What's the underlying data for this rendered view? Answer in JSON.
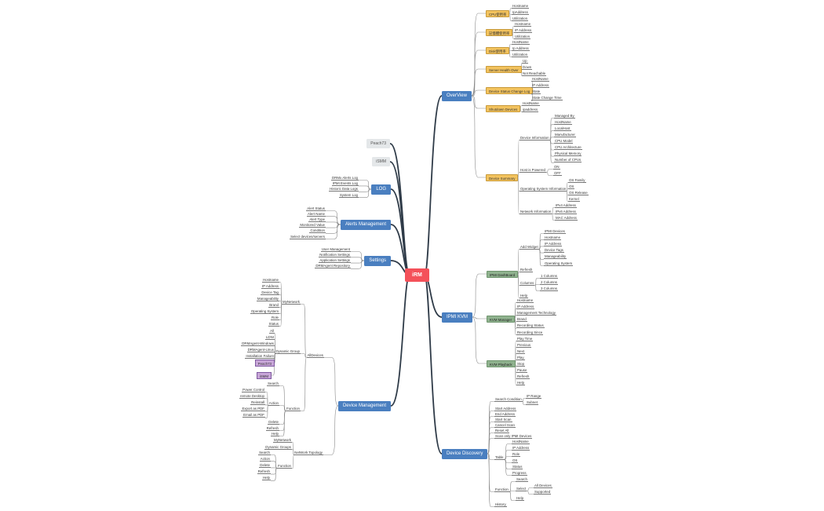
{
  "colors": {
    "root": "#f4515a",
    "main": "#4a7fc0",
    "overview_topics": "#f3c35e",
    "kvm_topics": "#8fb28e",
    "group_boxes": "#c8a6d8",
    "gray_topics": "#e4e7e9"
  },
  "mindmap": {
    "label": "iRM",
    "children": [
      {
        "label": "OverView",
        "children": [
          {
            "label": "CPU使用率",
            "children": [
              {
                "label": "Hostname"
              },
              {
                "label": "IpAddress"
              },
              {
                "label": "Utilization"
              }
            ]
          },
          {
            "label": "記憶體使用率",
            "children": [
              {
                "label": "Hostname"
              },
              {
                "label": "IP Address"
              },
              {
                "label": "Utilization"
              }
            ]
          },
          {
            "label": "Disk使用率",
            "children": [
              {
                "label": "HostName"
              },
              {
                "label": "Ip Address"
              },
              {
                "label": "Utilization"
              }
            ]
          },
          {
            "label": "Server Health Over",
            "children": [
              {
                "label": "Up"
              },
              {
                "label": "Down"
              },
              {
                "label": "Not Reachable"
              }
            ]
          },
          {
            "label": "Device Status Change Log",
            "children": [
              {
                "label": "HostName"
              },
              {
                "label": "IP Address"
              },
              {
                "label": "State"
              },
              {
                "label": "State Change Time"
              }
            ]
          },
          {
            "label": "Shutdown Devices",
            "children": [
              {
                "label": "HostName"
              },
              {
                "label": "ipaddress"
              }
            ]
          },
          {
            "label": "Device Summary",
            "children": [
              {
                "label": "Device Information",
                "children": [
                  {
                    "label": "Managed By"
                  },
                  {
                    "label": "HostName"
                  },
                  {
                    "label": "LocalHost"
                  },
                  {
                    "label": "Manufacturer"
                  },
                  {
                    "label": "CPU Model"
                  },
                  {
                    "label": "CPU Architecture"
                  },
                  {
                    "label": "Physical Memory"
                  },
                  {
                    "label": "Number of CPUs"
                  }
                ]
              },
              {
                "label": "Host is Powered",
                "children": [
                  {
                    "label": "ON"
                  },
                  {
                    "label": "OFF"
                  }
                ]
              },
              {
                "label": "Operating System Information",
                "children": [
                  {
                    "label": "OS Family"
                  },
                  {
                    "label": "OS"
                  },
                  {
                    "label": "OS Release"
                  },
                  {
                    "label": "Kernel"
                  }
                ]
              },
              {
                "label": "Network Information",
                "children": [
                  {
                    "label": "IPv4 Address"
                  },
                  {
                    "label": "IPv6 Address"
                  },
                  {
                    "label": "MAC Address"
                  }
                ]
              }
            ]
          }
        ]
      },
      {
        "label": "IPMI KVM",
        "children": [
          {
            "label": "IPMI DashBoard",
            "children": [
              {
                "label": "Add Widget",
                "children": [
                  {
                    "label": "IPMI Devices"
                  },
                  {
                    "label": "Hostname"
                  },
                  {
                    "label": "IP Address"
                  },
                  {
                    "label": "Device Tags"
                  },
                  {
                    "label": "Manageability"
                  },
                  {
                    "label": "Operating System"
                  }
                ]
              },
              {
                "label": "Refresh"
              },
              {
                "label": "Columns",
                "children": [
                  {
                    "label": "1 Columns"
                  },
                  {
                    "label": "2 Columns"
                  },
                  {
                    "label": "3 Columns"
                  }
                ]
              },
              {
                "label": "Help"
              }
            ]
          },
          {
            "label": "KVM Manager",
            "children": [
              {
                "label": "Hostname"
              },
              {
                "label": "IP Address"
              },
              {
                "label": "Management Technology"
              },
              {
                "label": "Brand"
              },
              {
                "label": "Recording Status"
              },
              {
                "label": "Recording Since"
              }
            ]
          },
          {
            "label": "KVM Playback",
            "children": [
              {
                "label": "Play Time"
              },
              {
                "label": "Previous"
              },
              {
                "label": "Next"
              },
              {
                "label": "Play"
              },
              {
                "label": "Stop"
              },
              {
                "label": "Pause"
              },
              {
                "label": "Refresh"
              },
              {
                "label": "Help"
              }
            ]
          }
        ]
      },
      {
        "label": "Device Discovery",
        "children": [
          {
            "label": "Search Condition",
            "children": [
              {
                "label": "IP Range"
              },
              {
                "label": "Subnet"
              }
            ]
          },
          {
            "label": "Start Address"
          },
          {
            "label": "End Address"
          },
          {
            "label": "Start Scan"
          },
          {
            "label": "Cancel Scan"
          },
          {
            "label": "Reset All"
          },
          {
            "label": "Scan only IPMI Devices"
          },
          {
            "label": "Table",
            "children": [
              {
                "label": "HostName"
              },
              {
                "label": "IP Address"
              },
              {
                "label": "Role"
              },
              {
                "label": "OS"
              },
              {
                "label": "Status"
              },
              {
                "label": "Progress"
              }
            ]
          },
          {
            "label": "Function",
            "children": [
              {
                "label": "Search"
              },
              {
                "label": "Select",
                "children": [
                  {
                    "label": "All Devices"
                  },
                  {
                    "label": "Supported"
                  }
                ]
              },
              {
                "label": "Help"
              }
            ]
          },
          {
            "label": "History"
          }
        ]
      },
      {
        "label": "Peach73"
      },
      {
        "label": "iSMM"
      },
      {
        "label": "LOG",
        "children": [
          {
            "label": "DRMx Alerts Log"
          },
          {
            "label": "IPMI Events Log"
          },
          {
            "label": "Historic Data Logs"
          },
          {
            "label": "System Log"
          }
        ]
      },
      {
        "label": "Alerts Management",
        "children": [
          {
            "label": "Alert Status"
          },
          {
            "label": "Alert Name"
          },
          {
            "label": "Alert Type"
          },
          {
            "label": "Monitored Value"
          },
          {
            "label": "Condition"
          },
          {
            "label": "Select devices/servers"
          }
        ]
      },
      {
        "label": "Settings",
        "children": [
          {
            "label": "User Management"
          },
          {
            "label": "Notification Settings"
          },
          {
            "label": "Application Settings"
          },
          {
            "label": "DRMAgent Repository"
          }
        ]
      },
      {
        "label": "Device Management",
        "children": [
          {
            "label": "AllDevices",
            "children": [
              {
                "label": "MyNetwork",
                "children": [
                  {
                    "label": "Hostname"
                  },
                  {
                    "label": "IP Address"
                  },
                  {
                    "label": "Device Tag"
                  },
                  {
                    "label": "Manageability"
                  },
                  {
                    "label": "Brand"
                  },
                  {
                    "label": "Operating System"
                  },
                  {
                    "label": "Role"
                  },
                  {
                    "label": "Status"
                  }
                ]
              },
              {
                "label": "Dynamic Group",
                "children": [
                  {
                    "label": "All"
                  },
                  {
                    "label": "LDNI"
                  },
                  {
                    "label": "DRMAgent-Windows"
                  },
                  {
                    "label": "DRMAgent-Linux"
                  },
                  {
                    "label": "Installation Failure"
                  },
                  {
                    "label": "Peach73"
                  },
                  {
                    "label": "iSMM"
                  }
                ]
              },
              {
                "label": "Function",
                "children": [
                  {
                    "label": "Search"
                  },
                  {
                    "label": "Action",
                    "children": [
                      {
                        "label": "Power Control"
                      },
                      {
                        "label": "remote Desktop"
                      },
                      {
                        "label": "Reinstall"
                      },
                      {
                        "label": "Export as PDF"
                      },
                      {
                        "label": "Email as PDF"
                      }
                    ]
                  },
                  {
                    "label": "Delete"
                  },
                  {
                    "label": "Refresh"
                  },
                  {
                    "label": "Help"
                  }
                ]
              }
            ]
          },
          {
            "label": "NetWork Topology",
            "children": [
              {
                "label": "MyNetwork"
              },
              {
                "label": "Dynamic Groups"
              },
              {
                "label": "Function",
                "children": [
                  {
                    "label": "Search"
                  },
                  {
                    "label": "Action"
                  },
                  {
                    "label": "Delete"
                  },
                  {
                    "label": "Refresh"
                  },
                  {
                    "label": "Help"
                  }
                ]
              }
            ]
          }
        ]
      }
    ]
  }
}
